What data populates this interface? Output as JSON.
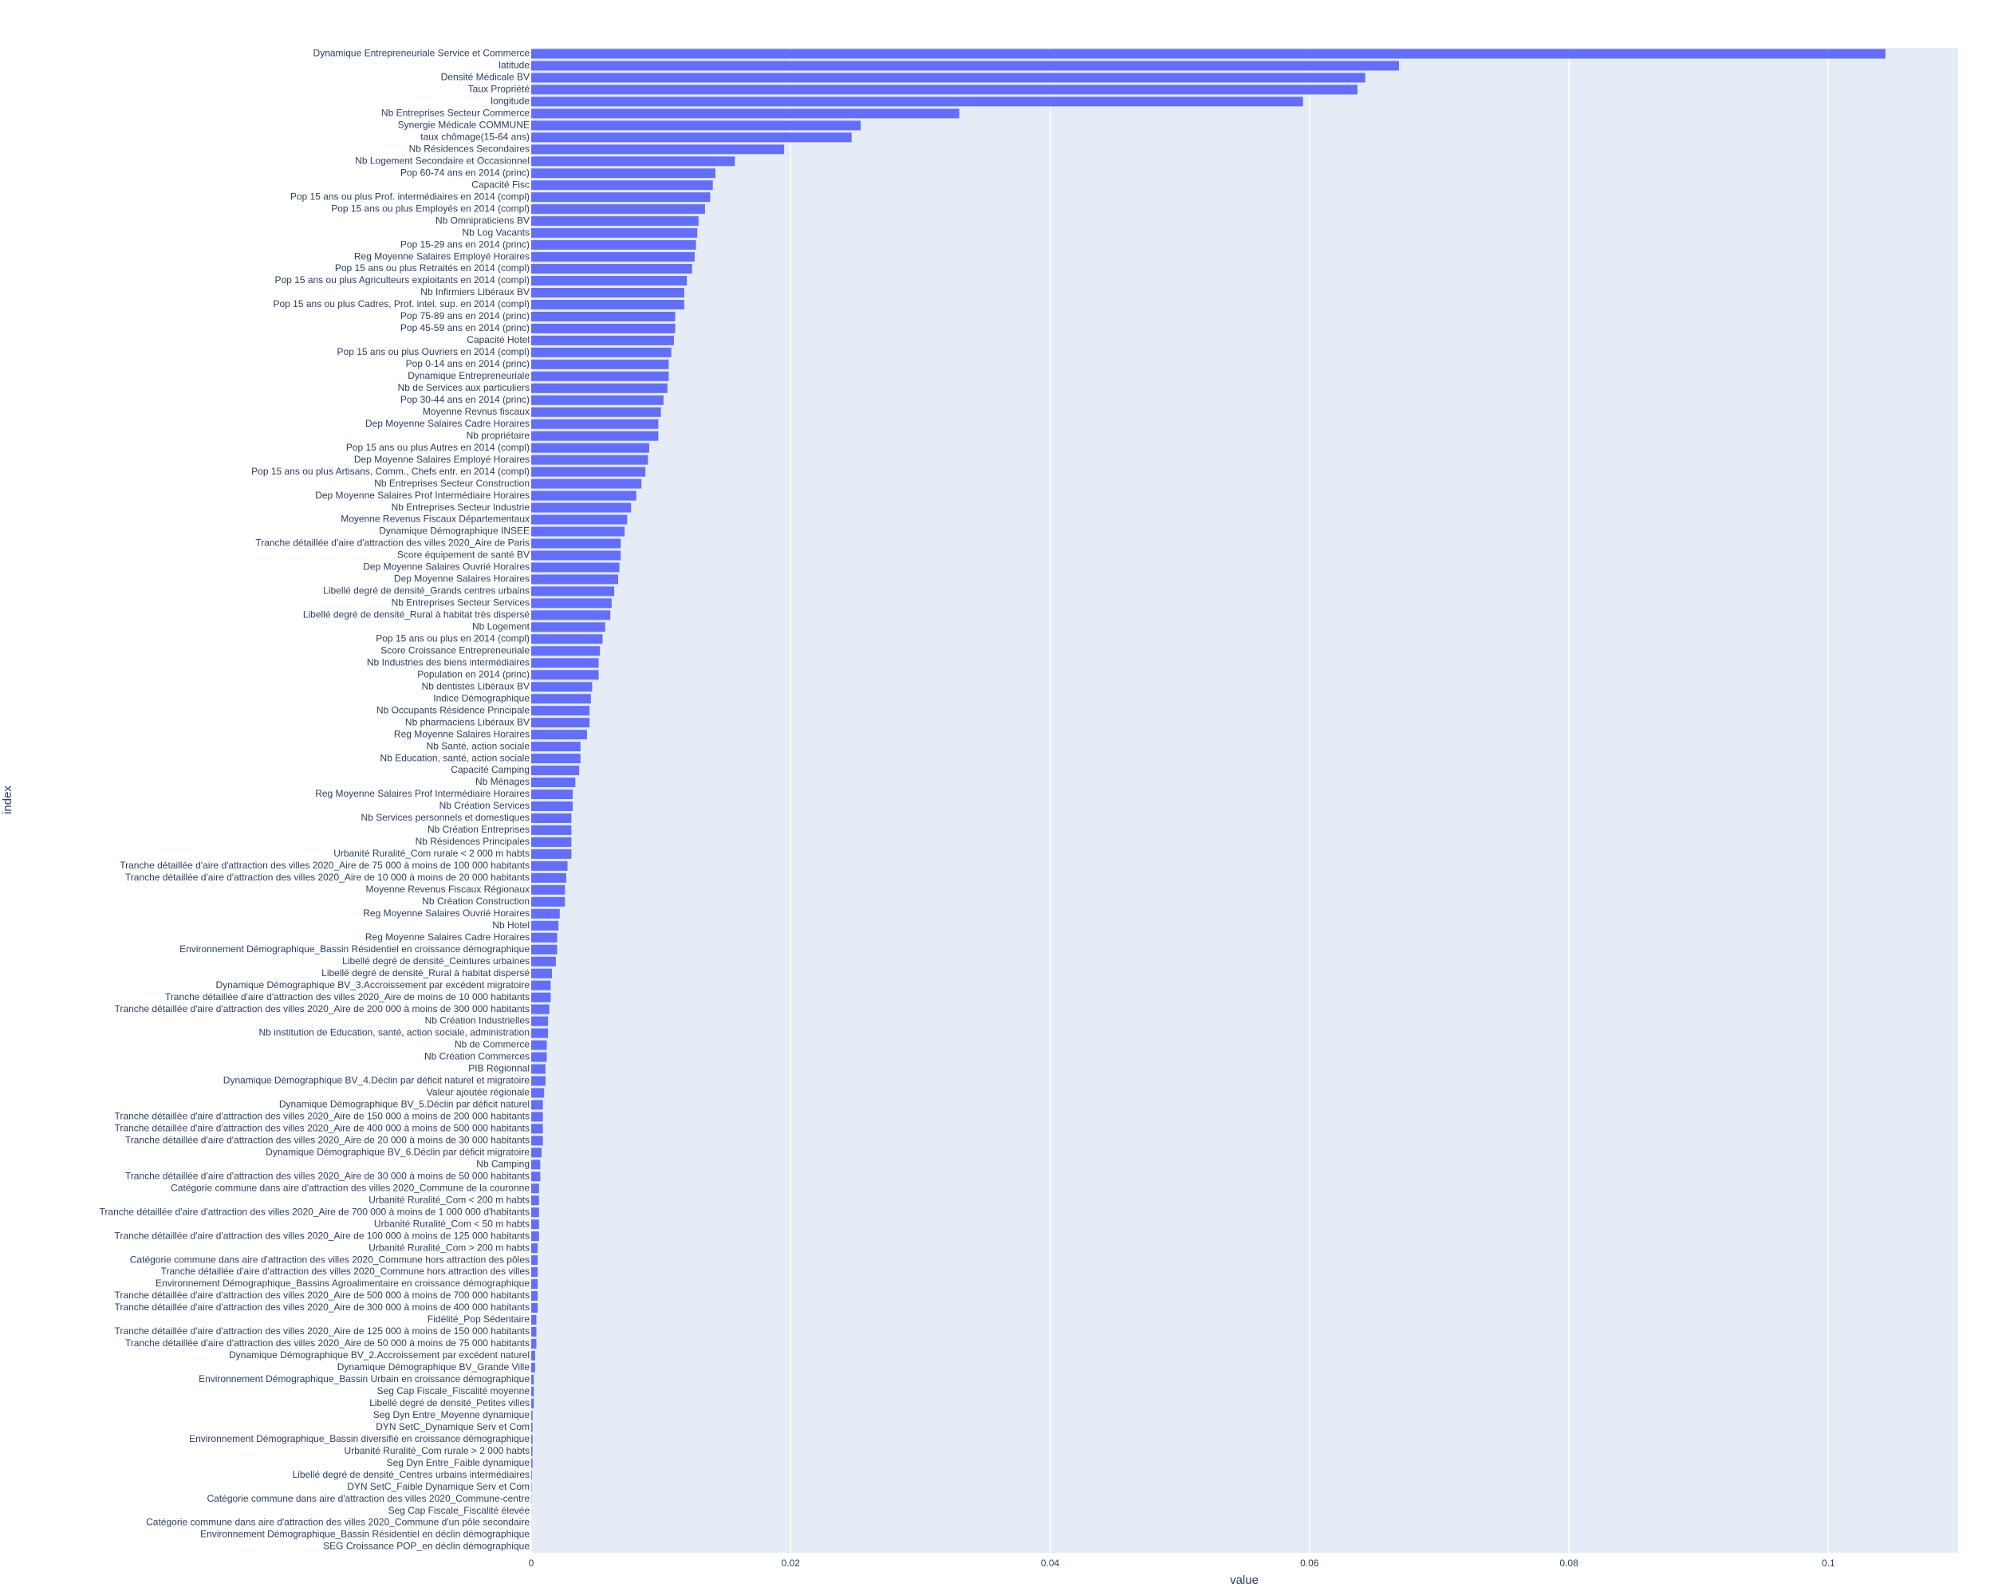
{
  "chart_data": {
    "type": "bar",
    "orientation": "horizontal",
    "xlabel": "value",
    "ylabel": "index",
    "color": "#636efa",
    "xlim": [
      0,
      0.11
    ],
    "xticks": [
      0,
      0.02,
      0.04,
      0.06,
      0.08,
      0.1
    ],
    "grid": true,
    "categories": [
      "Dynamique Entrepreneuriale Service et Commerce",
      "latitude",
      "Densité Médicale BV",
      "Taux Propriété",
      "longitude",
      "Nb Entreprises Secteur Commerce",
      "Synergie Médicale COMMUNE",
      "taux chômage(15-64 ans)",
      "Nb Résidences Secondaires",
      "Nb Logement Secondaire et Occasionnel",
      "Pop 60-74 ans en 2014 (princ)",
      "Capacité Fisc",
      "Pop 15 ans ou plus Prof. intermédiaires  en 2014 (compl)",
      "Pop 15 ans ou plus Employés en 2014 (compl)",
      "Nb Omnipraticiens BV",
      "Nb Log Vacants",
      "Pop 15-29 ans en 2014 (princ)",
      "Reg Moyenne Salaires Employé Horaires",
      "Pop 15 ans ou plus Retraités  en 2014 (compl)",
      "Pop 15 ans ou plus Agriculteurs exploitants en 2014 (compl)",
      "Nb Infirmiers Libéraux BV",
      "Pop 15 ans ou plus Cadres, Prof. intel. sup. en 2014 (compl)",
      "Pop 75-89 ans en 2014 (princ)",
      "Pop 45-59 ans en 2014 (princ)",
      "Capacité Hotel",
      "Pop 15 ans ou plus Ouvriers en 2014 (compl)",
      "Pop 0-14 ans en 2014 (princ)",
      "Dynamique Entrepreneuriale",
      "Nb de Services aux particuliers",
      "Pop 30-44 ans en 2014 (princ)",
      "Moyenne Revnus fiscaux",
      "Dep Moyenne Salaires Cadre Horaires",
      "Nb propriétaire",
      "Pop 15 ans ou plus Autres en 2014 (compl)",
      "Dep Moyenne Salaires Employé Horaires",
      "Pop 15 ans ou plus Artisans, Comm., Chefs entr. en 2014 (compl)",
      "Nb Entreprises Secteur Construction",
      "Dep Moyenne Salaires Prof Intermédiaire Horaires",
      "Nb Entreprises Secteur Industrie",
      "Moyenne Revenus Fiscaux Départementaux",
      "Dynamique Démographique INSEE",
      "Tranche détaillée d'aire d'attraction des villes 2020_Aire de Paris",
      "Score équipement de santé BV",
      "Dep Moyenne Salaires Ouvrié Horaires",
      "Dep Moyenne Salaires Horaires",
      "Libellé degré de densité_Grands centres urbains",
      "Nb Entreprises Secteur Services",
      "Libellé degré de densité_Rural à habitat très dispersé",
      "Nb Logement",
      "Pop 15 ans ou plus en 2014 (compl)",
      "Score Croissance Entrepreneuriale",
      "Nb Industries des biens intermédiaires",
      "Population en 2014 (princ)",
      "Nb dentistes Libéraux BV",
      "Indice Démographique",
      "Nb Occupants Résidence Principale",
      "Nb pharmaciens Libéraux BV",
      "Reg Moyenne Salaires Horaires",
      "Nb Santé, action sociale",
      "Nb Education, santé, action sociale",
      "Capacité Camping",
      "Nb Ménages",
      "Reg Moyenne Salaires Prof Intermédiaire Horaires",
      "Nb Création Services",
      "Nb Services personnels et domestiques",
      "Nb Création Entreprises",
      "Nb Résidences Principales",
      "Urbanité Ruralité_Com rurale < 2 000 m habts",
      "Tranche détaillée d'aire d'attraction des villes 2020_Aire de 75 000 à moins de 100 000 habitants",
      "Tranche détaillée d'aire d'attraction des villes 2020_Aire de 10 000 à moins de 20 000 habitants",
      "Moyenne Revenus Fiscaux Régionaux",
      "Nb Création Construction",
      "Reg Moyenne Salaires Ouvrié Horaires",
      "Nb Hotel",
      "Reg Moyenne Salaires Cadre Horaires",
      "Environnement Démographique_Bassin Résidentiel en croissance démographique",
      "Libellé degré de densité_Ceintures urbaines",
      "Libellé degré de densité_Rural à habitat dispersé",
      "Dynamique Démographique BV_3.Accroissement par excédent migratoire",
      "Tranche détaillée d'aire d'attraction des villes 2020_Aire de moins de 10 000 habitants",
      "Tranche détaillée d'aire d'attraction des villes 2020_Aire de 200 000 à moins de 300 000 habitants",
      "Nb Création Industrielles",
      "Nb institution de Education, santé, action sociale, administration",
      "Nb de Commerce",
      "Nb Création Commerces",
      "PIB Régionnal",
      "Dynamique Démographique BV_4.Déclin par déficit naturel et migratoire",
      "Valeur ajoutée régionale",
      "Dynamique Démographique BV_5.Déclin par déficit naturel",
      "Tranche détaillée d'aire d'attraction des villes 2020_Aire de 150 000 à moins de 200 000 habitants",
      "Tranche détaillée d'aire d'attraction des villes 2020_Aire de 400 000 à moins de 500 000 habitants",
      "Tranche détaillée d'aire d'attraction des villes 2020_Aire de 20 000 à moins de 30 000 habitants",
      "Dynamique Démographique BV_6.Déclin par déficit migratoire",
      "Nb Camping",
      "Tranche détaillée d'aire d'attraction des villes 2020_Aire de 30 000 à moins de 50 000 habitants",
      "Catégorie commune dans aire d'attraction des villes 2020_Commune de la couronne",
      "Urbanité Ruralité_Com < 200 m habts",
      "Tranche détaillée d'aire d'attraction des villes 2020_Aire de 700 000 à moins de 1 000 000 d'habitants",
      "Urbanité Ruralité_Com < 50 m habts",
      "Tranche détaillée d'aire d'attraction des villes 2020_Aire de 100 000 à moins de 125 000 habitants",
      "Urbanité Ruralité_Com > 200 m habts",
      "Catégorie commune dans aire d'attraction des villes 2020_Commune hors attraction des pôles",
      "Tranche détaillée d'aire d'attraction des villes 2020_Commune hors attraction des villes",
      "Environnement Démographique_Bassins Agroalimentaire en croissance démographique",
      "Tranche détaillée d'aire d'attraction des villes 2020_Aire de 500 000 à moins de 700 000 habitants",
      "Tranche détaillée d'aire d'attraction des villes 2020_Aire de 300 000 à moins de 400 000 habitants",
      "Fidélité_Pop Sédentaire",
      "Tranche détaillée d'aire d'attraction des villes 2020_Aire de 125 000 à moins de 150 000 habitants",
      "Tranche détaillée d'aire d'attraction des villes 2020_Aire de 50 000 à moins de 75 000 habitants",
      "Dynamique Démographique BV_2.Accroissement par excédent naturel",
      "Dynamique Démographique BV_Grande Ville",
      "Environnement Démographique_Bassin Urbain en croissance démographique",
      "Seg Cap Fiscale_Fiscalité moyenne",
      "Libellé degré de densité_Petites villes",
      "Seg Dyn Entre_Moyenne dynamique",
      "DYN SetC_Dynamique Serv et Com",
      "Environnement Démographique_Bassin diversifié en croissance démographique",
      "Urbanité Ruralité_Com rurale > 2 000 habts",
      "Seg Dyn Entre_Faible dynamique",
      "Libellé degré de densité_Centres urbains intermédiaires",
      "DYN SetC_Faible Dynamique Serv et Com",
      "Catégorie commune dans aire d'attraction des villes 2020_Commune-centre",
      "Seg Cap Fiscale_Fiscalité élevée",
      "Catégorie commune dans aire d'attraction des villes 2020_Commune d'un pôle secondaire",
      "Environnement Démographique_Bassin Résidentiel en déclin démographique",
      "SEG Croissance POP_en déclin démographique"
    ],
    "values": [
      0.1044,
      0.0669,
      0.0643,
      0.0637,
      0.0595,
      0.033,
      0.0254,
      0.0247,
      0.0195,
      0.0157,
      0.0142,
      0.014,
      0.0138,
      0.0134,
      0.0129,
      0.0128,
      0.0127,
      0.0126,
      0.0124,
      0.012,
      0.0118,
      0.0118,
      0.0111,
      0.0111,
      0.011,
      0.0108,
      0.0106,
      0.0106,
      0.0105,
      0.0102,
      0.01,
      0.0098,
      0.0098,
      0.0091,
      0.009,
      0.0088,
      0.0085,
      0.0081,
      0.0077,
      0.0074,
      0.0072,
      0.0069,
      0.0069,
      0.0068,
      0.0067,
      0.0064,
      0.0062,
      0.0061,
      0.0057,
      0.0055,
      0.0053,
      0.0052,
      0.0052,
      0.0047,
      0.0046,
      0.0045,
      0.0045,
      0.0043,
      0.0038,
      0.0038,
      0.0037,
      0.0034,
      0.0032,
      0.0032,
      0.0031,
      0.0031,
      0.0031,
      0.0031,
      0.0028,
      0.0027,
      0.0026,
      0.0026,
      0.0022,
      0.0021,
      0.002,
      0.002,
      0.0019,
      0.0016,
      0.0015,
      0.0015,
      0.0014,
      0.0013,
      0.0013,
      0.0012,
      0.0012,
      0.0011,
      0.0011,
      0.001,
      0.0009,
      0.0009,
      0.0009,
      0.0009,
      0.0008,
      0.0007,
      0.0007,
      0.0006,
      0.0006,
      0.0006,
      0.0006,
      0.0006,
      0.0005,
      0.0005,
      0.0005,
      0.0005,
      0.0005,
      0.0005,
      0.0004,
      0.0004,
      0.0004,
      0.0003,
      0.0003,
      0.0002,
      0.0002,
      0.0002,
      0.0001,
      0.0001,
      0.0001,
      0.0001,
      0.0001,
      5e-05,
      3e-05,
      2e-05,
      1e-05,
      1e-05,
      0,
      0
    ]
  }
}
